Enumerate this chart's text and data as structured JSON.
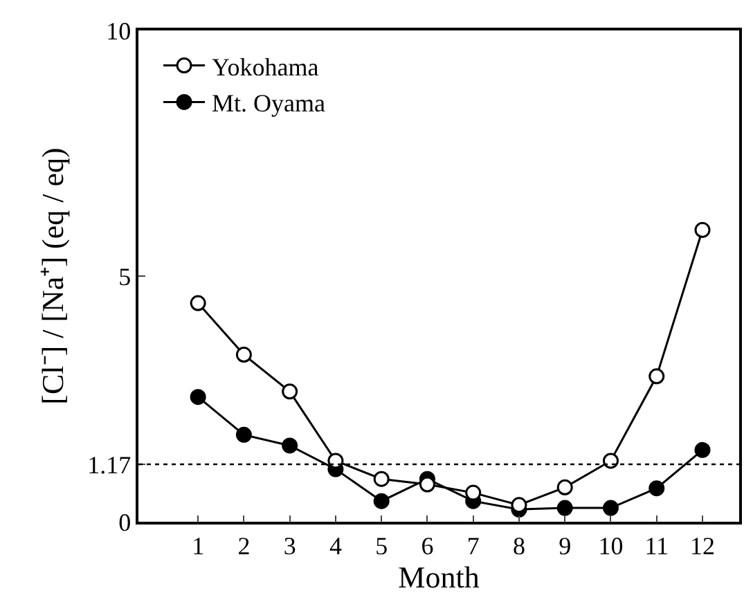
{
  "chart_data": {
    "type": "line",
    "xlabel": "Month",
    "ylabel": "[Cl⁻] / [Na⁺] (eq / eq)",
    "x": [
      1,
      2,
      3,
      4,
      5,
      6,
      7,
      8,
      9,
      10,
      11,
      12
    ],
    "series": [
      {
        "name": "Yokohama",
        "color": "#000000",
        "marker": "circle-open",
        "values": [
          4.45,
          3.4,
          2.65,
          1.24,
          0.87,
          0.76,
          0.59,
          0.34,
          0.7,
          1.24,
          2.96,
          5.94
        ]
      },
      {
        "name": "Mt. Oyama",
        "color": "#000000",
        "marker": "circle",
        "values": [
          2.54,
          1.77,
          1.55,
          1.07,
          0.42,
          0.87,
          0.42,
          0.25,
          0.28,
          0.28,
          0.68,
          1.46
        ]
      }
    ],
    "xlim": [
      -0.3,
      12.8
    ],
    "xticks": [
      1,
      2,
      3,
      4,
      5,
      6,
      7,
      8,
      9,
      10,
      11,
      12
    ],
    "ylim": [
      0,
      10
    ],
    "yticks": [
      0,
      1.17,
      5,
      10
    ],
    "ref_lines": [
      {
        "axis": "y",
        "value": 1.17,
        "color": "#000000",
        "line_style": "dotted"
      }
    ],
    "grid": false,
    "legend": "top left",
    "line_style": "solid"
  }
}
